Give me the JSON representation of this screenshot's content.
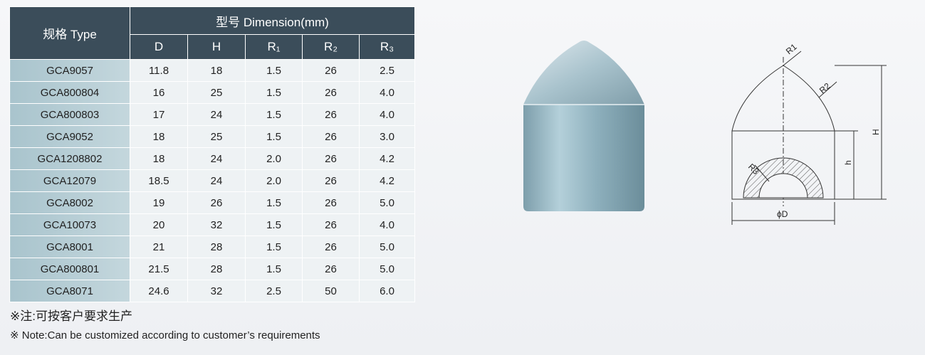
{
  "table": {
    "type_header": "规格 Type",
    "group_header": "型号 Dimension(mm)",
    "columns": [
      "D",
      "H",
      "R₁",
      "R₂",
      "R₃"
    ],
    "rows": [
      [
        "GCA9057",
        "11.8",
        "18",
        "1.5",
        "26",
        "2.5"
      ],
      [
        "GCA800804",
        "16",
        "25",
        "1.5",
        "26",
        "4.0"
      ],
      [
        "GCA800803",
        "17",
        "24",
        "1.5",
        "26",
        "4.0"
      ],
      [
        "GCA9052",
        "18",
        "25",
        "1.5",
        "26",
        "3.0"
      ],
      [
        "GCA1208802",
        "18",
        "24",
        "2.0",
        "26",
        "4.2"
      ],
      [
        "GCA12079",
        "18.5",
        "24",
        "2.0",
        "26",
        "4.2"
      ],
      [
        "GCA8002",
        "19",
        "26",
        "1.5",
        "26",
        "5.0"
      ],
      [
        "GCA10073",
        "20",
        "32",
        "1.5",
        "26",
        "4.0"
      ],
      [
        "GCA8001",
        "21",
        "28",
        "1.5",
        "26",
        "5.0"
      ],
      [
        "GCA800801",
        "21.5",
        "28",
        "1.5",
        "26",
        "5.0"
      ],
      [
        "GCA8071",
        "24.6",
        "32",
        "2.5",
        "50",
        "6.0"
      ]
    ]
  },
  "notes": [
    "※注:可按客户要求生产",
    "※ Note:Can be customized according to customer’s requirements"
  ],
  "diagram": {
    "r1": "R1",
    "r2": "R2",
    "height": "H",
    "body_height": "h",
    "r3": "R3",
    "diameter": "ϕD"
  }
}
